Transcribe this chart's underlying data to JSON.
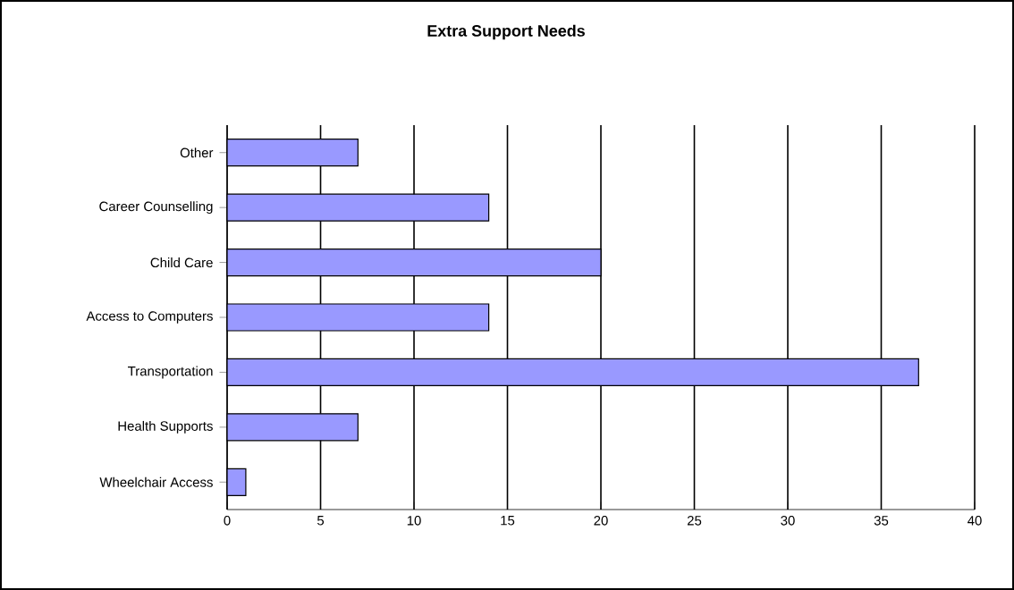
{
  "chart_data": {
    "type": "bar",
    "orientation": "horizontal",
    "title": "Extra Support Needs",
    "categories": [
      "Other",
      "Career Counselling",
      "Child Care",
      "Access to Computers",
      "Transportation",
      "Health Supports",
      "Wheelchair Access"
    ],
    "values": [
      7,
      14,
      20,
      14,
      37,
      7,
      1
    ],
    "color": "#9999ff",
    "xlim": [
      0,
      40
    ],
    "xticks": [
      0,
      5,
      10,
      15,
      20,
      25,
      30,
      35,
      40
    ],
    "grid": "x"
  }
}
